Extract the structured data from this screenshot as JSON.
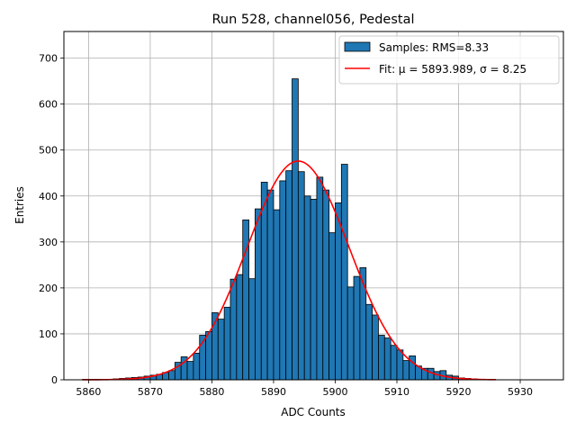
{
  "chart_data": {
    "type": "bar",
    "title": "Run 528, channel056, Pedestal",
    "xlabel": "ADC Counts",
    "ylabel": "Entries",
    "xlim": [
      5856,
      5937
    ],
    "ylim": [
      0,
      758
    ],
    "x_ticks": [
      5860,
      5870,
      5880,
      5890,
      5900,
      5910,
      5920,
      5930
    ],
    "y_ticks": [
      0,
      100,
      200,
      300,
      400,
      500,
      600,
      700
    ],
    "grid": true,
    "legend": {
      "placement": "top-right",
      "entries": [
        {
          "label": "Samples: RMS=8.33",
          "kind": "patch",
          "color": "#1f77b4"
        },
        {
          "label": "Fit: μ = 5893.989, σ = 8.25",
          "kind": "line",
          "color": "#ff0000"
        }
      ]
    },
    "histogram": {
      "name": "Samples: RMS=8.33",
      "color": "#1f77b4",
      "bin_width": 1,
      "bins": [
        {
          "x": 5859,
          "count": 1
        },
        {
          "x": 5860,
          "count": 1
        },
        {
          "x": 5861,
          "count": 1
        },
        {
          "x": 5862,
          "count": 1
        },
        {
          "x": 5863,
          "count": 1
        },
        {
          "x": 5864,
          "count": 2
        },
        {
          "x": 5865,
          "count": 3
        },
        {
          "x": 5866,
          "count": 4
        },
        {
          "x": 5867,
          "count": 5
        },
        {
          "x": 5868,
          "count": 6
        },
        {
          "x": 5869,
          "count": 8
        },
        {
          "x": 5870,
          "count": 10
        },
        {
          "x": 5871,
          "count": 12
        },
        {
          "x": 5872,
          "count": 16
        },
        {
          "x": 5873,
          "count": 20
        },
        {
          "x": 5874,
          "count": 38
        },
        {
          "x": 5875,
          "count": 50
        },
        {
          "x": 5876,
          "count": 40
        },
        {
          "x": 5877,
          "count": 58
        },
        {
          "x": 5878,
          "count": 97
        },
        {
          "x": 5879,
          "count": 105
        },
        {
          "x": 5880,
          "count": 146
        },
        {
          "x": 5881,
          "count": 132
        },
        {
          "x": 5882,
          "count": 158
        },
        {
          "x": 5883,
          "count": 219
        },
        {
          "x": 5884,
          "count": 229
        },
        {
          "x": 5885,
          "count": 348
        },
        {
          "x": 5886,
          "count": 220
        },
        {
          "x": 5887,
          "count": 372
        },
        {
          "x": 5888,
          "count": 430
        },
        {
          "x": 5889,
          "count": 413
        },
        {
          "x": 5890,
          "count": 370
        },
        {
          "x": 5891,
          "count": 433
        },
        {
          "x": 5892,
          "count": 455
        },
        {
          "x": 5893,
          "count": 655
        },
        {
          "x": 5894,
          "count": 453
        },
        {
          "x": 5895,
          "count": 400
        },
        {
          "x": 5896,
          "count": 393
        },
        {
          "x": 5897,
          "count": 441
        },
        {
          "x": 5898,
          "count": 413
        },
        {
          "x": 5899,
          "count": 320
        },
        {
          "x": 5900,
          "count": 385
        },
        {
          "x": 5901,
          "count": 469
        },
        {
          "x": 5902,
          "count": 202
        },
        {
          "x": 5903,
          "count": 225
        },
        {
          "x": 5904,
          "count": 244
        },
        {
          "x": 5905,
          "count": 164
        },
        {
          "x": 5906,
          "count": 141
        },
        {
          "x": 5907,
          "count": 97
        },
        {
          "x": 5908,
          "count": 91
        },
        {
          "x": 5909,
          "count": 75
        },
        {
          "x": 5910,
          "count": 65
        },
        {
          "x": 5911,
          "count": 42
        },
        {
          "x": 5912,
          "count": 52
        },
        {
          "x": 5913,
          "count": 30
        },
        {
          "x": 5914,
          "count": 25
        },
        {
          "x": 5915,
          "count": 25
        },
        {
          "x": 5916,
          "count": 18
        },
        {
          "x": 5917,
          "count": 20
        },
        {
          "x": 5918,
          "count": 10
        },
        {
          "x": 5919,
          "count": 8
        },
        {
          "x": 5920,
          "count": 4
        },
        {
          "x": 5921,
          "count": 3
        },
        {
          "x": 5922,
          "count": 2
        },
        {
          "x": 5923,
          "count": 1
        },
        {
          "x": 5924,
          "count": 1
        },
        {
          "x": 5925,
          "count": 1
        }
      ]
    },
    "fit": {
      "name": "Fit: μ = 5893.989, σ = 8.25",
      "color": "#ff0000",
      "type": "gaussian",
      "mu": 5893.989,
      "sigma": 8.25,
      "amplitude": 476,
      "x_range": [
        5859,
        5926
      ]
    }
  }
}
